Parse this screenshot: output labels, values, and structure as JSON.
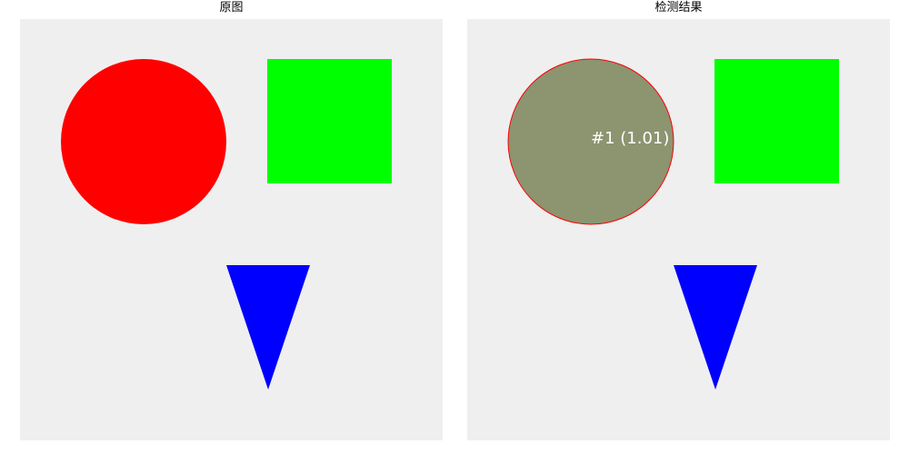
{
  "left_panel": {
    "title": "原图",
    "background_color": "#efeff0"
  },
  "right_panel": {
    "title": "检测结果",
    "background_color": "#efeff0",
    "match_label": "#1 (1.01)"
  },
  "shapes": {
    "circle": {
      "color": "#ff0000",
      "detected_color": "#8c9470"
    },
    "square": {
      "color": "#00ff00"
    },
    "triangle": {
      "color": "#0000ff"
    }
  }
}
